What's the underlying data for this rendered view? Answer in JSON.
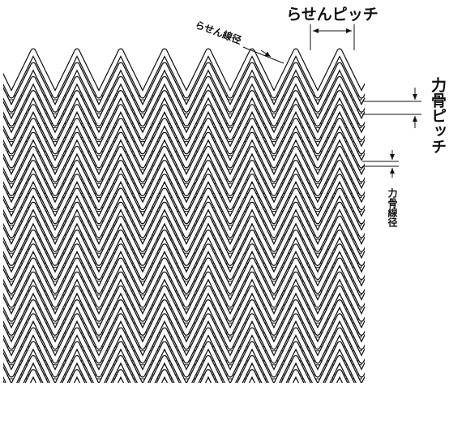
{
  "labels": {
    "spiral_pitch": "らせんピッチ",
    "spiral_wire_diameter": "らせん線径",
    "rod_pitch": "力骨ピッチ",
    "rod_wire_diameter": "力骨線径"
  }
}
